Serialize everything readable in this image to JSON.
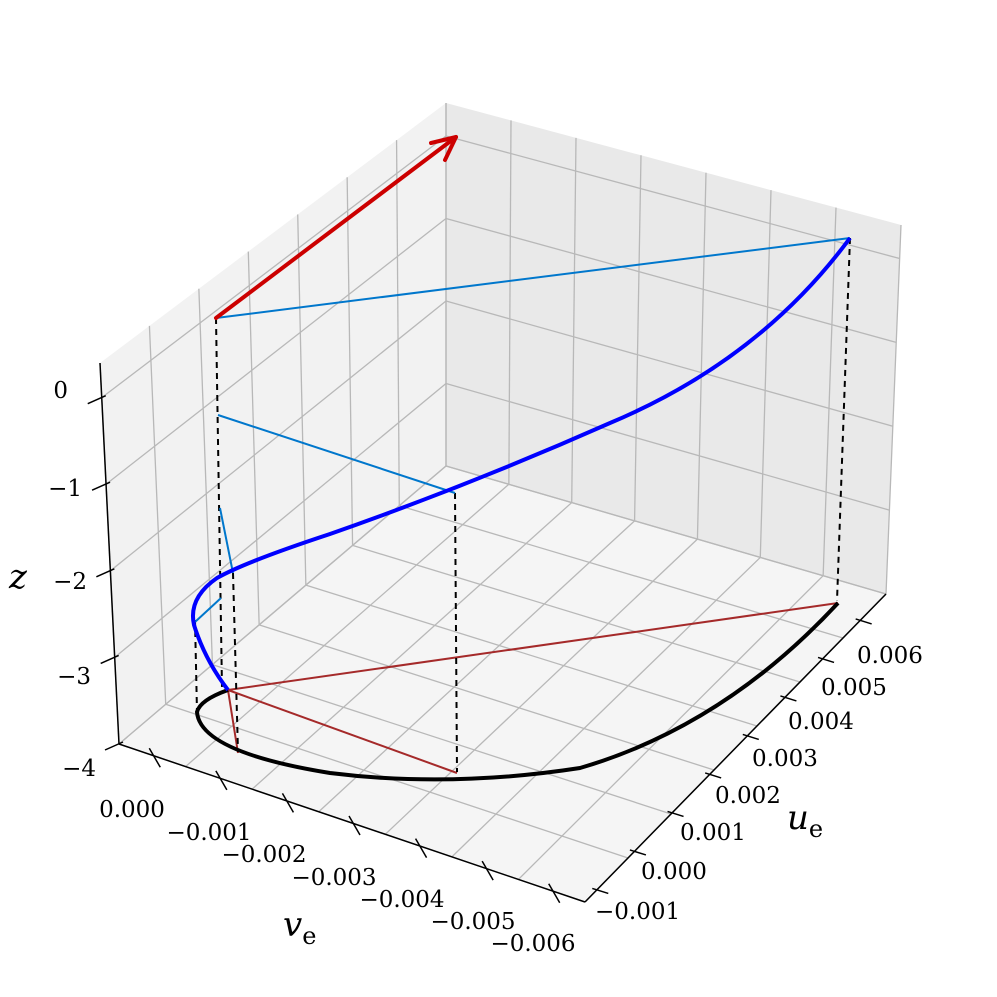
{
  "chart_data": {
    "type": "line3d",
    "title": "",
    "axes": {
      "x": {
        "label": "u",
        "label_sub": "e",
        "ticks": [
          "−0.001",
          "0.000",
          "0.001",
          "0.002",
          "0.003",
          "0.004",
          "0.005",
          "0.006"
        ]
      },
      "y": {
        "label": "v",
        "label_sub": "e",
        "ticks": [
          "0.000",
          "−0.001",
          "−0.002",
          "−0.003",
          "−0.004",
          "−0.005",
          "−0.006"
        ]
      },
      "z": {
        "label": "z",
        "label_sub": "",
        "ticks": [
          "−4",
          "−3",
          "−2",
          "−1",
          "0"
        ]
      }
    },
    "grid": true,
    "colors": {
      "spiral": "#0000ff",
      "hodograph": "#000000",
      "surface_arrow": "#cc0000",
      "level_lines": "#0077cc",
      "floor_lines": "#a52a2a",
      "drop_lines": "#000000"
    }
  }
}
